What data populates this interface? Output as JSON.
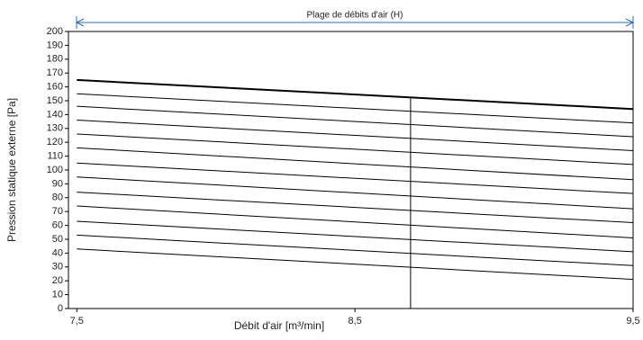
{
  "chart_data": {
    "type": "line",
    "annotation": "Plage de débits d'air (H)",
    "xlabel": "Débit d'air [m³/min]",
    "ylabel": "Pression statique externe [Pa]",
    "x": [
      7.5,
      9.5
    ],
    "xlim": [
      7.47,
      9.5
    ],
    "xticks": [
      {
        "value": 7.5,
        "label": "7,5"
      },
      {
        "value": 8.5,
        "label": "8,5"
      },
      {
        "value": 9.5,
        "label": "9,5"
      }
    ],
    "ylim": [
      0,
      200
    ],
    "yticks": [
      0,
      10,
      20,
      30,
      40,
      50,
      60,
      70,
      80,
      90,
      100,
      110,
      120,
      130,
      140,
      150,
      160,
      170,
      180,
      190,
      200
    ],
    "grid": false,
    "series": [
      {
        "color": "#000000",
        "line_width": 2,
        "values": [
          165,
          144
        ]
      },
      {
        "color": "#000000",
        "values": [
          155,
          134
        ]
      },
      {
        "color": "#000000",
        "values": [
          146,
          124
        ]
      },
      {
        "color": "#000000",
        "values": [
          136,
          114
        ]
      },
      {
        "color": "#000000",
        "values": [
          126,
          104
        ]
      },
      {
        "color": "#000000",
        "values": [
          116,
          93
        ]
      },
      {
        "color": "#000000",
        "values": [
          105,
          83
        ]
      },
      {
        "color": "#000000",
        "values": [
          95,
          72
        ]
      },
      {
        "color": "#000000",
        "values": [
          84,
          62
        ]
      },
      {
        "color": "#000000",
        "values": [
          74,
          51
        ]
      },
      {
        "color": "#000000",
        "values": [
          63,
          41
        ]
      },
      {
        "color": "#000000",
        "values": [
          53,
          31
        ]
      },
      {
        "color": "#000000",
        "values": [
          43,
          21
        ]
      },
      {
        "color": "#000000",
        "x": [
          8.7,
          8.7
        ],
        "values": [
          0,
          153
        ]
      }
    ]
  }
}
